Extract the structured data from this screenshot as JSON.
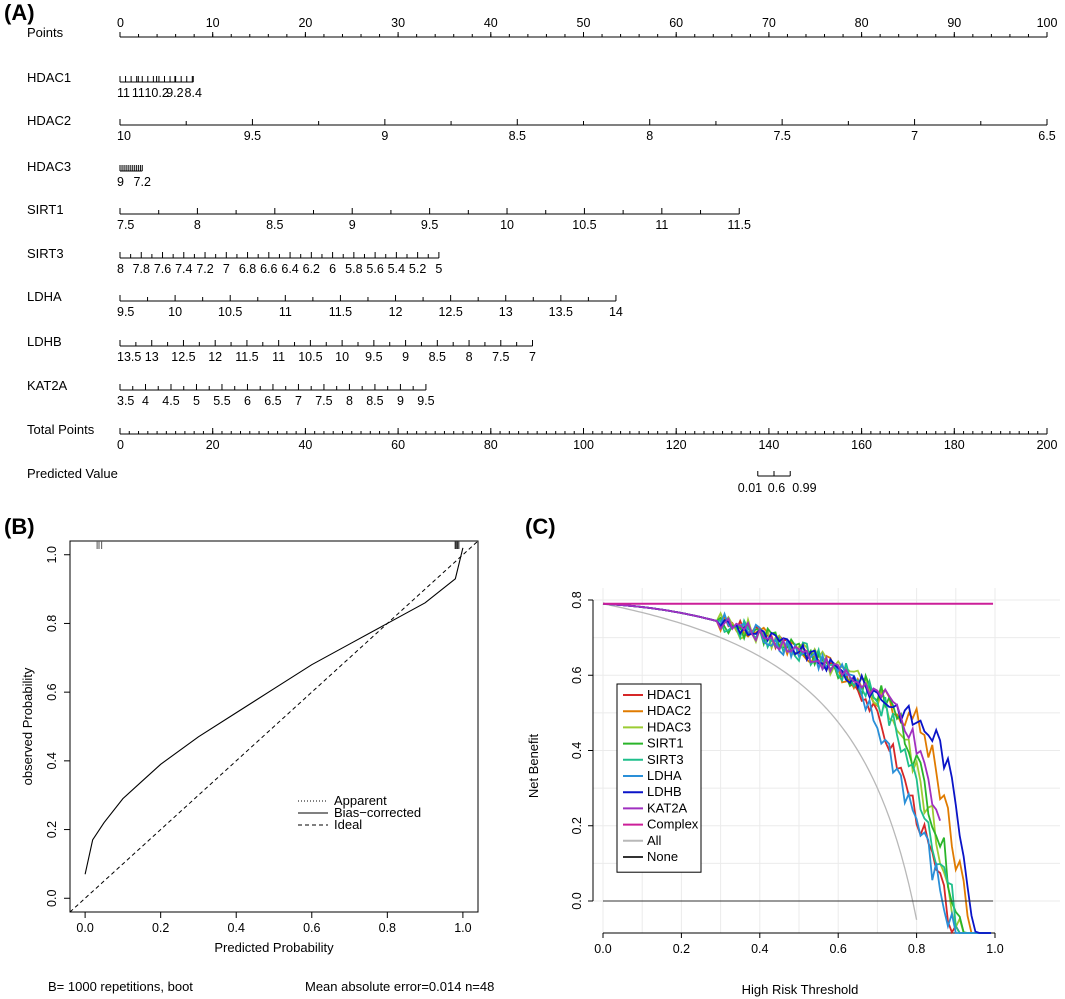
{
  "panels": {
    "a": "(A)",
    "b": "(B)",
    "c": "(C)"
  },
  "chart_data": [
    {
      "type": "nomogram",
      "panel": "(A)",
      "rows": [
        {
          "label": "Points",
          "ticks": [
            "0",
            "10",
            "20",
            "30",
            "40",
            "50",
            "60",
            "70",
            "80",
            "90",
            "100"
          ],
          "range": [
            0,
            100
          ],
          "minor": 5
        },
        {
          "label": "HDAC1",
          "ticks": [
            "11",
            "11",
            "10.2",
            "9.2",
            "8.4"
          ],
          "range": [
            0,
            7.9
          ],
          "minor_every": 0.6
        },
        {
          "label": "HDAC2",
          "ticks": [
            "10",
            "9.5",
            "9",
            "8.5",
            "8",
            "7.5",
            "7",
            "6.5"
          ],
          "range": [
            0,
            100
          ]
        },
        {
          "label": "HDAC3",
          "ticks": [
            "9",
            "7.2"
          ],
          "range": [
            0,
            2.4
          ],
          "minor_every": 0.22
        },
        {
          "label": "SIRT1",
          "ticks": [
            "7.5",
            "8",
            "8.5",
            "9",
            "9.5",
            "10",
            "10.5",
            "11",
            "11.5"
          ],
          "range": [
            0,
            66.8
          ]
        },
        {
          "label": "SIRT3",
          "ticks": [
            "8",
            "7.8",
            "7.6",
            "7.4",
            "7.2",
            "7",
            "6.8",
            "6.6",
            "6.4",
            "6.2",
            "6",
            "5.8",
            "5.6",
            "5.4",
            "5.2",
            "5"
          ],
          "range": [
            0,
            34.4
          ]
        },
        {
          "label": "LDHA",
          "ticks": [
            "9.5",
            "10",
            "10.5",
            "11",
            "11.5",
            "12",
            "12.5",
            "13",
            "13.5",
            "14"
          ],
          "range": [
            0,
            53.5
          ]
        },
        {
          "label": "LDHB",
          "ticks": [
            "13.5",
            "13",
            "12.5",
            "12",
            "11.5",
            "11",
            "10.5",
            "10",
            "9.5",
            "9",
            "8.5",
            "8",
            "7.5",
            "7"
          ],
          "range": [
            0,
            44.5
          ]
        },
        {
          "label": "KAT2A",
          "ticks": [
            "3.5",
            "4",
            "4.5",
            "5",
            "5.5",
            "6",
            "6.5",
            "7",
            "7.5",
            "8",
            "8.5",
            "9",
            "9.5"
          ],
          "range": [
            0,
            33.0
          ]
        },
        {
          "label": "Total Points",
          "ticks": [
            "0",
            "20",
            "40",
            "60",
            "80",
            "100",
            "120",
            "140",
            "160",
            "180",
            "200"
          ],
          "range": [
            0,
            100
          ],
          "minor": 10
        },
        {
          "label": "Predicted Value",
          "ticks": [
            "0.01",
            "0.6",
            "0.99"
          ],
          "range": [
            68.8,
            72.3
          ]
        }
      ]
    },
    {
      "type": "line",
      "panel": "(B)",
      "xlabel": "Predicted Probability",
      "ylabel": "observed Probability",
      "xlim": [
        -0.04,
        1.04
      ],
      "ylim": [
        -0.04,
        1.04
      ],
      "xticks": [
        "0.0",
        "0.2",
        "0.4",
        "0.6",
        "0.8",
        "1.0"
      ],
      "yticks": [
        "0.0",
        "0.2",
        "0.4",
        "0.6",
        "0.8",
        "1.0"
      ],
      "legend": [
        "Apparent",
        "Bias−corrected",
        "Ideal"
      ],
      "series": [
        {
          "name": "Bias-corrected",
          "x": [
            0.0,
            0.02,
            0.05,
            0.1,
            0.15,
            0.2,
            0.3,
            0.4,
            0.5,
            0.6,
            0.7,
            0.8,
            0.9,
            0.98,
            1.0
          ],
          "y": [
            0.07,
            0.17,
            0.22,
            0.29,
            0.34,
            0.39,
            0.47,
            0.54,
            0.61,
            0.68,
            0.74,
            0.8,
            0.86,
            0.93,
            1.02
          ]
        },
        {
          "name": "Ideal",
          "x": [
            -0.04,
            1.04
          ],
          "y": [
            -0.04,
            1.04
          ]
        }
      ],
      "footer_left": "B= 1000 repetitions, boot",
      "footer_right": "Mean absolute error=0.014 n=48"
    },
    {
      "type": "line",
      "panel": "(C)",
      "xlabel": "High Risk Threshold",
      "ylabel": "Net Benefit",
      "xlim": [
        0,
        1
      ],
      "ylim": [
        -0.08,
        0.86
      ],
      "xticks": [
        "0.0",
        "0.2",
        "0.4",
        "0.6",
        "0.8",
        "1.0"
      ],
      "yticks": [
        "0.0",
        "0.2",
        "0.4",
        "0.6",
        "0.8"
      ],
      "prevalence": 0.79,
      "series": [
        {
          "name": "HDAC1",
          "color": "#d62728",
          "end": 0.99,
          "drop": 0.62,
          "amp": 0.04
        },
        {
          "name": "HDAC2",
          "color": "#e07b00",
          "end": 0.99,
          "drop": 0.8,
          "amp": 0.05
        },
        {
          "name": "HDAC3",
          "color": "#9ccc33",
          "end": 0.95,
          "drop": 0.7,
          "amp": 0.06
        },
        {
          "name": "SIRT1",
          "color": "#2ab52a",
          "end": 0.99,
          "drop": 0.72,
          "amp": 0.05
        },
        {
          "name": "SIRT3",
          "color": "#1fbf8c",
          "end": 0.99,
          "drop": 0.68,
          "amp": 0.06
        },
        {
          "name": "LDHA",
          "color": "#2a8fd8",
          "end": 0.99,
          "drop": 0.6,
          "amp": 0.06
        },
        {
          "name": "LDHB",
          "color": "#0a14c8",
          "end": 0.99,
          "drop": 0.85,
          "amp": 0.04
        },
        {
          "name": "KAT2A",
          "color": "#a030c0",
          "end": 0.86,
          "drop": 0.74,
          "amp": 0.04
        },
        {
          "name": "Complex",
          "color": "#cc1f99",
          "flat": 0.79
        },
        {
          "name": "All",
          "color": "#b8b8b8"
        },
        {
          "name": "None",
          "color": "#333333",
          "flat": 0.0
        }
      ]
    }
  ]
}
